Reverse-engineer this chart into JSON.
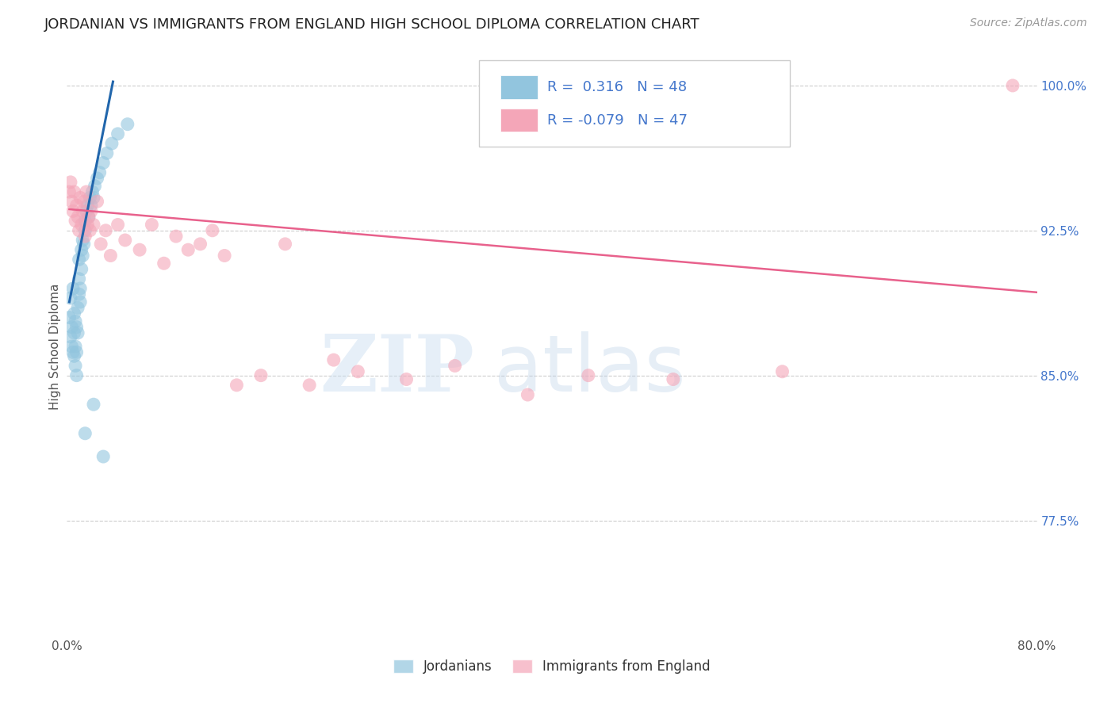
{
  "title": "JORDANIAN VS IMMIGRANTS FROM ENGLAND HIGH SCHOOL DIPLOMA CORRELATION CHART",
  "source": "Source: ZipAtlas.com",
  "ylabel": "High School Diploma",
  "xlim": [
    0.0,
    0.8
  ],
  "ylim": [
    0.715,
    1.015
  ],
  "yticks_right": [
    0.775,
    0.85,
    0.925,
    1.0
  ],
  "yticklabels_right": [
    "77.5%",
    "85.0%",
    "92.5%",
    "100.0%"
  ],
  "r_blue": 0.316,
  "n_blue": 48,
  "r_pink": -0.079,
  "n_pink": 47,
  "blue_color": "#92c5de",
  "pink_color": "#f4a6b8",
  "blue_line_color": "#2166ac",
  "pink_line_color": "#e8618c",
  "legend_blue_label": "Jordanians",
  "legend_pink_label": "Immigrants from England",
  "title_color": "#222222",
  "right_tick_color": "#4477cc",
  "watermark_zip": "ZIP",
  "watermark_atlas": "atlas",
  "blue_x": [
    0.002,
    0.003,
    0.003,
    0.004,
    0.004,
    0.005,
    0.005,
    0.006,
    0.006,
    0.006,
    0.007,
    0.007,
    0.007,
    0.008,
    0.008,
    0.008,
    0.009,
    0.009,
    0.01,
    0.01,
    0.01,
    0.011,
    0.011,
    0.012,
    0.012,
    0.013,
    0.013,
    0.014,
    0.015,
    0.015,
    0.016,
    0.017,
    0.018,
    0.019,
    0.02,
    0.021,
    0.022,
    0.023,
    0.025,
    0.027,
    0.03,
    0.033,
    0.037,
    0.042,
    0.05,
    0.015,
    0.022,
    0.03
  ],
  "blue_y": [
    0.88,
    0.87,
    0.89,
    0.875,
    0.865,
    0.862,
    0.895,
    0.86,
    0.872,
    0.882,
    0.855,
    0.865,
    0.878,
    0.85,
    0.862,
    0.875,
    0.872,
    0.885,
    0.892,
    0.9,
    0.91,
    0.888,
    0.895,
    0.905,
    0.915,
    0.912,
    0.92,
    0.918,
    0.93,
    0.925,
    0.935,
    0.938,
    0.932,
    0.942,
    0.938,
    0.945,
    0.942,
    0.948,
    0.952,
    0.955,
    0.96,
    0.965,
    0.97,
    0.975,
    0.98,
    0.82,
    0.835,
    0.808
  ],
  "pink_x": [
    0.002,
    0.003,
    0.004,
    0.005,
    0.006,
    0.007,
    0.008,
    0.009,
    0.01,
    0.011,
    0.012,
    0.013,
    0.014,
    0.015,
    0.016,
    0.017,
    0.018,
    0.019,
    0.02,
    0.022,
    0.025,
    0.028,
    0.032,
    0.036,
    0.042,
    0.048,
    0.06,
    0.07,
    0.08,
    0.09,
    0.1,
    0.11,
    0.12,
    0.13,
    0.14,
    0.16,
    0.18,
    0.2,
    0.22,
    0.24,
    0.28,
    0.32,
    0.38,
    0.43,
    0.5,
    0.59,
    0.78
  ],
  "pink_y": [
    0.945,
    0.95,
    0.94,
    0.935,
    0.945,
    0.93,
    0.938,
    0.932,
    0.925,
    0.942,
    0.928,
    0.935,
    0.94,
    0.922,
    0.945,
    0.928,
    0.932,
    0.925,
    0.935,
    0.928,
    0.94,
    0.918,
    0.925,
    0.912,
    0.928,
    0.92,
    0.915,
    0.928,
    0.908,
    0.922,
    0.915,
    0.918,
    0.925,
    0.912,
    0.845,
    0.85,
    0.918,
    0.845,
    0.858,
    0.852,
    0.848,
    0.855,
    0.84,
    0.85,
    0.848,
    0.852,
    1.0
  ]
}
